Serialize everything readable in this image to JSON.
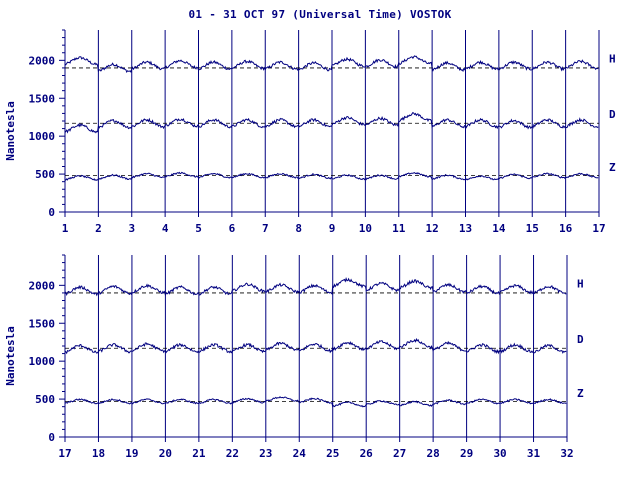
{
  "title": "01 - 31 OCT 97 (Universal Time) VOSTOK",
  "colors": {
    "axis": "#000080",
    "trace": "#000080",
    "background": "#ffffff"
  },
  "chart_data": [
    {
      "type": "line",
      "title": "01 - 31 OCT 97 (Universal Time) VOSTOK",
      "ylabel": "Nanotesla",
      "xlabel": "",
      "xlim": [
        1,
        17
      ],
      "ylim": [
        0,
        2400
      ],
      "x_ticks": [
        "1",
        "2",
        "3",
        "4",
        "5",
        "6",
        "7",
        "8",
        "9",
        "10",
        "11",
        "12",
        "13",
        "14",
        "15",
        "16",
        "17"
      ],
      "y_ticks": [
        "0",
        "500",
        "1000",
        "1500",
        "2000"
      ],
      "grid": "vertical lines at each day",
      "series": [
        {
          "name": "H",
          "baseline": 1900,
          "daily_mean": [
            1990,
            1900,
            1930,
            1950,
            1930,
            1940,
            1930,
            1920,
            1970,
            1960,
            2000,
            1920,
            1930,
            1930,
            1930,
            1940
          ]
        },
        {
          "name": "D",
          "baseline": 1170,
          "daily_mean": [
            1100,
            1160,
            1170,
            1180,
            1170,
            1170,
            1170,
            1170,
            1200,
            1190,
            1250,
            1170,
            1170,
            1160,
            1170,
            1170
          ]
        },
        {
          "name": "Z",
          "baseline": 480,
          "daily_mean": [
            450,
            460,
            480,
            490,
            480,
            480,
            480,
            470,
            460,
            460,
            490,
            460,
            450,
            470,
            480,
            480
          ]
        }
      ]
    },
    {
      "type": "line",
      "ylabel": "Nanotesla",
      "xlabel": "",
      "xlim": [
        17,
        32
      ],
      "ylim": [
        0,
        2400
      ],
      "x_ticks": [
        "17",
        "18",
        "19",
        "20",
        "21",
        "22",
        "23",
        "24",
        "25",
        "26",
        "27",
        "28",
        "29",
        "30",
        "31",
        "32"
      ],
      "y_ticks": [
        "0",
        "500",
        "1000",
        "1500",
        "2000"
      ],
      "grid": "vertical lines at each day",
      "series": [
        {
          "name": "H",
          "baseline": 1900,
          "daily_mean": [
            1930,
            1940,
            1950,
            1930,
            1930,
            1970,
            1960,
            1950,
            2030,
            1980,
            2010,
            1960,
            1940,
            1950,
            1940
          ]
        },
        {
          "name": "D",
          "baseline": 1170,
          "daily_mean": [
            1160,
            1170,
            1180,
            1170,
            1170,
            1170,
            1190,
            1180,
            1200,
            1210,
            1230,
            1190,
            1170,
            1170,
            1160
          ]
        },
        {
          "name": "Z",
          "baseline": 470,
          "daily_mean": [
            470,
            470,
            470,
            470,
            470,
            480,
            500,
            480,
            430,
            450,
            440,
            460,
            470,
            470,
            470
          ]
        }
      ]
    }
  ]
}
